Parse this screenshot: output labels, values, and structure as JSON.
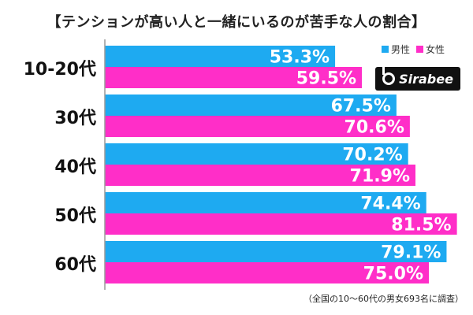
{
  "chart_data": {
    "type": "bar",
    "orientation": "horizontal",
    "title": "【テンションが高い人と一緒にいるのが苦手な人の割合】",
    "categories": [
      "10-20代",
      "30代",
      "40代",
      "50代",
      "60代"
    ],
    "series": [
      {
        "name": "男性",
        "color": "#1eaaf1",
        "values": [
          53.3,
          67.5,
          70.2,
          74.4,
          79.1
        ],
        "labels": [
          "53.3%",
          "67.5%",
          "70.2%",
          "74.4%",
          "79.1%"
        ]
      },
      {
        "name": "女性",
        "color": "#ff2ec8",
        "values": [
          59.5,
          70.6,
          71.9,
          81.5,
          75.0
        ],
        "labels": [
          "59.5%",
          "70.6%",
          "71.9%",
          "81.5%",
          "75.0%"
        ]
      }
    ],
    "xlim": [
      0,
      100
    ],
    "grid": false,
    "legend_position": "top-right"
  },
  "note": "（全国の10〜60代の男女693名に調査）",
  "logo_text": "Sirabee"
}
